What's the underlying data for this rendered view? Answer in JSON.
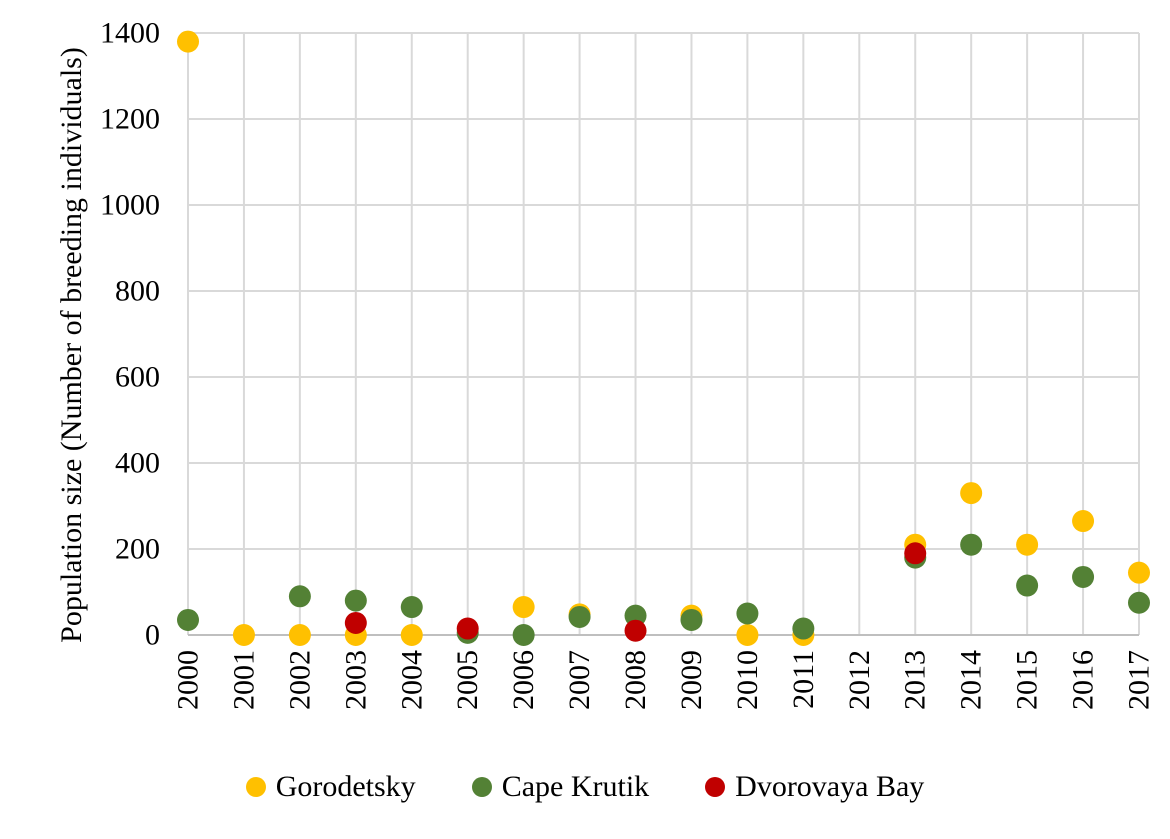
{
  "colors": {
    "background": "#FFFFFF",
    "grid": "#D9D9D9",
    "axis": "#BFBFBF",
    "text": "#000000"
  },
  "chart_data": {
    "type": "scatter",
    "title": "",
    "xlabel": "",
    "ylabel": "Population size (Number of breeding individuals)",
    "xlim": [
      2000,
      2017
    ],
    "ylim": [
      0,
      1400
    ],
    "x_ticks": [
      2000,
      2001,
      2002,
      2003,
      2004,
      2005,
      2006,
      2007,
      2008,
      2009,
      2010,
      2011,
      2012,
      2013,
      2014,
      2015,
      2016,
      2017
    ],
    "y_ticks": [
      0,
      200,
      400,
      600,
      800,
      1000,
      1200,
      1400
    ],
    "grid": true,
    "marker": "circle",
    "legend_position": "bottom-center",
    "series": [
      {
        "name": "Gorodetsky",
        "color": "#FFC000",
        "points": [
          [
            2000,
            1380
          ],
          [
            2001,
            0
          ],
          [
            2002,
            0
          ],
          [
            2003,
            0
          ],
          [
            2004,
            0
          ],
          [
            2006,
            65
          ],
          [
            2007,
            48
          ],
          [
            2009,
            45
          ],
          [
            2010,
            0
          ],
          [
            2011,
            0
          ],
          [
            2013,
            210
          ],
          [
            2014,
            330
          ],
          [
            2015,
            210
          ],
          [
            2016,
            265
          ],
          [
            2017,
            145
          ]
        ]
      },
      {
        "name": "Cape Krutik",
        "color": "#538135",
        "points": [
          [
            2000,
            35
          ],
          [
            2002,
            90
          ],
          [
            2003,
            80
          ],
          [
            2004,
            65
          ],
          [
            2005,
            5
          ],
          [
            2006,
            0
          ],
          [
            2007,
            42
          ],
          [
            2008,
            45
          ],
          [
            2009,
            35
          ],
          [
            2010,
            50
          ],
          [
            2011,
            15
          ],
          [
            2013,
            180
          ],
          [
            2014,
            210
          ],
          [
            2015,
            115
          ],
          [
            2016,
            135
          ],
          [
            2017,
            75
          ]
        ]
      },
      {
        "name": "Dvorovaya Bay",
        "color": "#C00000",
        "points": [
          [
            2003,
            28
          ],
          [
            2005,
            15
          ],
          [
            2008,
            10
          ],
          [
            2013,
            190
          ]
        ]
      }
    ]
  }
}
